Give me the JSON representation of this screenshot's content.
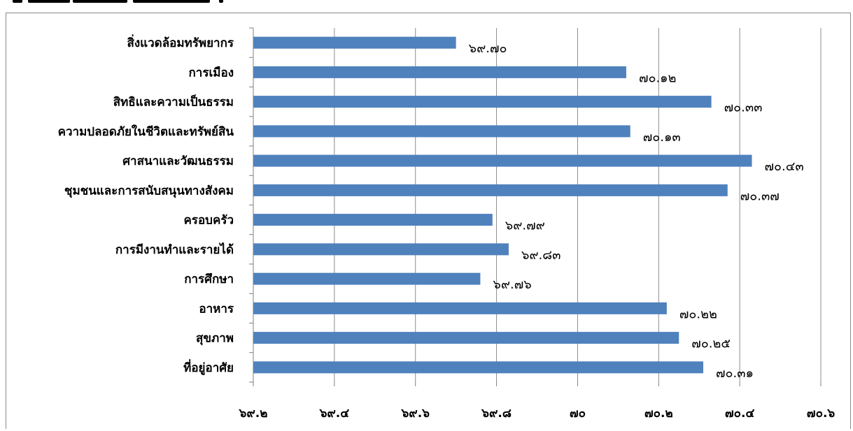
{
  "chart_data": {
    "type": "bar",
    "orientation": "horizontal",
    "categories": [
      "สิ่งแวดล้อมทรัพยากร",
      "การเมือง",
      "สิทธิและความเป็นธรรม",
      "ความปลอดภัยในชีวิตและทรัพย์สิน",
      "ศาสนาและวัฒนธรรม",
      "ชุมชนและการสนับสนุนทางสังคม",
      "ครอบครัว",
      "การมีงานทำและรายได้",
      "การศึกษา",
      "อาหาร",
      "สุขภาพ",
      "ที่อยู่อาศัย"
    ],
    "values": [
      69.7,
      70.12,
      70.33,
      70.13,
      70.43,
      70.37,
      69.79,
      69.83,
      69.76,
      70.22,
      70.25,
      70.31
    ],
    "value_labels": [
      "๖๙.๗๐",
      "๗๐.๑๒",
      "๗๐.๓๓",
      "๗๐.๑๓",
      "๗๐.๔๓",
      "๗๐.๓๗",
      "๖๙.๗๙",
      "๖๙.๘๓",
      "๖๙.๗๖",
      "๗๐.๒๒",
      "๗๐.๒๕",
      "๗๐.๓๑"
    ],
    "xlim": [
      69.2,
      70.6
    ],
    "ticks": [
      69.2,
      69.4,
      69.6,
      69.8,
      70.0,
      70.2,
      70.4,
      70.6
    ],
    "tick_labels": [
      "๖๙.๒",
      "๖๙.๔",
      "๖๙.๖",
      "๖๙.๘",
      "๗๐",
      "๗๐.๒",
      "๗๐.๔",
      "๗๐.๖"
    ],
    "grid": true,
    "bar_color": "#4f81bd",
    "grid_color": "#8c8c8c",
    "title": "",
    "xlabel": "",
    "ylabel": ""
  }
}
